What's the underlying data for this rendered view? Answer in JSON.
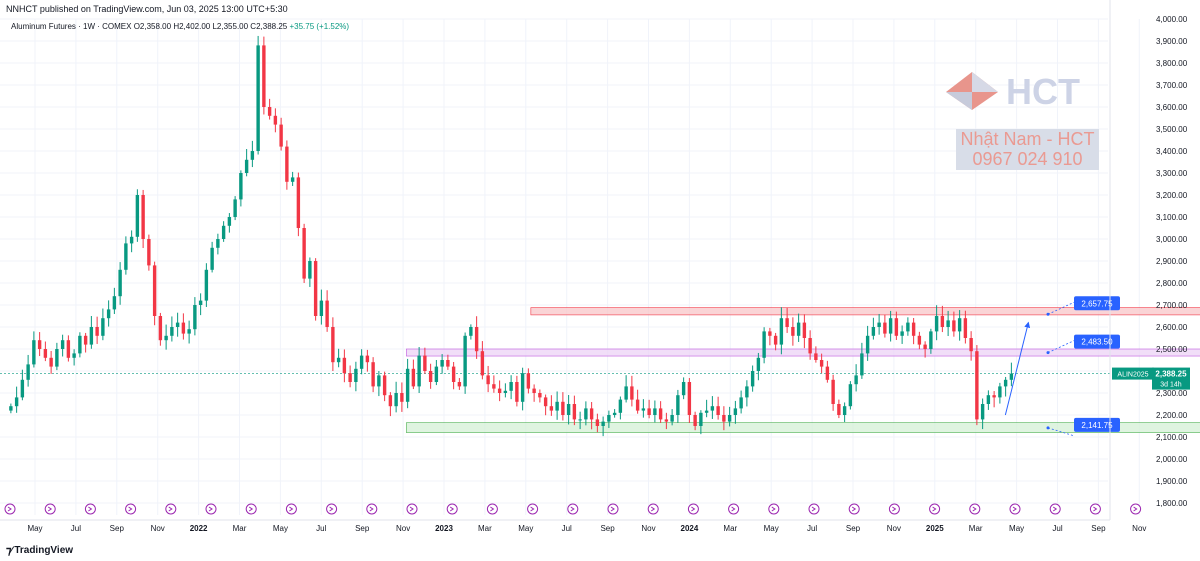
{
  "header": {
    "published": "NNHCT published on TradingView.com, Jun 03, 2025 13:00 UTC+5:30",
    "symbol": "Aluminum Futures · 1W · COMEX",
    "open": "O2,358.00",
    "high": "H2,402.00",
    "low": "L2,355.00",
    "close": "C2,388.25",
    "change": "+35.75 (+1.52%)"
  },
  "watermark": {
    "brand": "HCT",
    "tagline": "Nhật Nam - HCT",
    "phone": "0967 024 910"
  },
  "footer": {
    "brand": "TradingView"
  },
  "colors": {
    "up": "#089981",
    "down": "#f23645",
    "label": "#2962ff",
    "red_zone": "#f8c6c8",
    "purple_zone": "#ecd3f5",
    "green_zone": "#d4f0d6"
  },
  "chart_data": {
    "type": "candlestick",
    "title": "Aluminum Futures · 1W · COMEX",
    "ylim": [
      1800,
      4000
    ],
    "y_ticks": [
      "4,000.00",
      "3,900.00",
      "3,800.00",
      "3,700.00",
      "3,600.00",
      "3,500.00",
      "3,400.00",
      "3,300.00",
      "3,200.00",
      "3,100.00",
      "3,000.00",
      "2,900.00",
      "2,800.00",
      "2,700.00",
      "2,600.00",
      "2,500.00",
      "2,400.00",
      "2,300.00",
      "2,200.00",
      "2,100.00",
      "2,000.00",
      "1,900.00",
      "1,800.00"
    ],
    "x_ticks": [
      "May",
      "Jul",
      "Sep",
      "Nov",
      "2022",
      "Mar",
      "May",
      "Jul",
      "Sep",
      "Nov",
      "2023",
      "Mar",
      "May",
      "Jul",
      "Sep",
      "Nov",
      "2024",
      "Mar",
      "May",
      "Jul",
      "Sep",
      "Nov",
      "2025",
      "Mar",
      "May",
      "Jul",
      "Sep",
      "Nov"
    ],
    "x_start": "2021-04",
    "price_label": {
      "symbol": "ALIN2025",
      "value": "2,388.25",
      "countdown": "3d 14h",
      "price": 2388.25
    },
    "levels": [
      {
        "label": "2,657.75",
        "value": 2657.75
      },
      {
        "label": "2,483.50",
        "value": 2483.5
      },
      {
        "label": "2,141.75",
        "value": 2141.75
      }
    ],
    "zones": [
      {
        "name": "resistance",
        "from": 2655,
        "to": 2688,
        "x_from": "2023-01",
        "x_to": "2025-06"
      },
      {
        "name": "mid",
        "from": 2468,
        "to": 2500,
        "x_from": "2022-08",
        "x_to": "2025-06"
      },
      {
        "name": "support",
        "from": 2120,
        "to": 2165,
        "x_from": "2022-08",
        "x_to": "2025-07"
      }
    ],
    "closes": [
      2240,
      2280,
      2360,
      2430,
      2540,
      2500,
      2460,
      2420,
      2500,
      2540,
      2460,
      2480,
      2560,
      2520,
      2600,
      2560,
      2640,
      2680,
      2740,
      2860,
      2980,
      3010,
      3200,
      3000,
      2880,
      2650,
      2540,
      2560,
      2600,
      2620,
      2570,
      2590,
      2700,
      2720,
      2860,
      2960,
      3000,
      3060,
      3100,
      3180,
      3300,
      3360,
      3400,
      3880,
      3600,
      3560,
      3520,
      3420,
      3260,
      3280,
      3050,
      2820,
      2900,
      2650,
      2720,
      2600,
      2440,
      2460,
      2390,
      2350,
      2410,
      2470,
      2440,
      2330,
      2380,
      2290,
      2240,
      2300,
      2260,
      2410,
      2330,
      2470,
      2400,
      2350,
      2420,
      2450,
      2420,
      2350,
      2330,
      2560,
      2600,
      2490,
      2380,
      2340,
      2320,
      2300,
      2310,
      2350,
      2260,
      2390,
      2320,
      2300,
      2280,
      2240,
      2220,
      2260,
      2200,
      2250,
      2180,
      2180,
      2230,
      2180,
      2150,
      2170,
      2200,
      2210,
      2270,
      2330,
      2270,
      2220,
      2230,
      2200,
      2230,
      2180,
      2170,
      2200,
      2290,
      2350,
      2200,
      2150,
      2210,
      2220,
      2240,
      2200,
      2170,
      2200,
      2230,
      2280,
      2330,
      2400,
      2460,
      2580,
      2560,
      2520,
      2640,
      2600,
      2560,
      2620,
      2550,
      2480,
      2450,
      2420,
      2360,
      2250,
      2200,
      2240,
      2340,
      2380,
      2480,
      2560,
      2600,
      2620,
      2570,
      2640,
      2560,
      2580,
      2620,
      2560,
      2520,
      2500,
      2580,
      2650,
      2600,
      2630,
      2580,
      2640,
      2550,
      2490,
      2180,
      2250,
      2290,
      2280,
      2330,
      2360,
      2388
    ]
  }
}
